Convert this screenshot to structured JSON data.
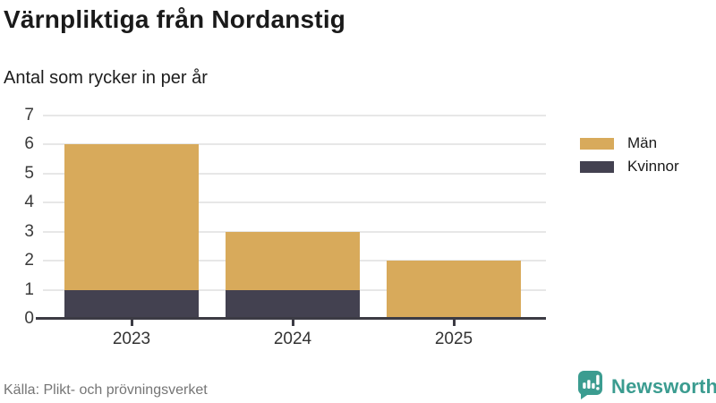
{
  "header": {
    "title": "Värnpliktiga från Nordanstig",
    "subtitle": "Antal som rycker in per år"
  },
  "chart_data": {
    "type": "bar",
    "subtype": "stacked-bar",
    "title": "Värnpliktiga från Nordanstig",
    "subtitle": "Antal som rycker in per år",
    "categories": [
      "2023",
      "2024",
      "2025"
    ],
    "series": [
      {
        "name": "Män",
        "color": "#d8aa5b",
        "values": [
          5,
          2,
          2
        ]
      },
      {
        "name": "Kvinnor",
        "color": "#434150",
        "values": [
          1,
          1,
          0
        ]
      }
    ],
    "stack_totals": [
      6,
      3,
      2
    ],
    "stack_order_note": "Kvinnor at bottom of stack, Män on top",
    "xlabel": "",
    "ylabel": "",
    "ylim": [
      0,
      7
    ],
    "yticks": [
      0,
      1,
      2,
      3,
      4,
      5,
      6,
      7
    ],
    "grid": "horizontal",
    "legend_position": "top-right"
  },
  "footer": {
    "source": "Källa: Plikt- och prövningsverket",
    "brand": "Newsworthy"
  },
  "colors": {
    "bar_men": "#d8aa5b",
    "bar_women": "#434150",
    "gridline": "#e7e7e7",
    "axis": "#3c3b44",
    "title_text": "#1a1a1a",
    "muted_text": "#757575",
    "brand_teal": "#3b9c90"
  }
}
